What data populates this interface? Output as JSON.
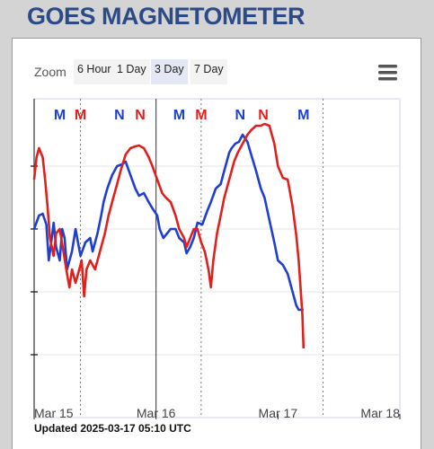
{
  "header": {
    "title": "GOES MAGNETOMETER"
  },
  "toolbar": {
    "label": "Zoom",
    "buttons": [
      "6 Hour",
      "1 Day",
      "3 Day",
      "7 Day"
    ],
    "selected": 2
  },
  "footer": {
    "updated": "Updated 2025-03-17 05:10 UTC"
  },
  "chart_data": {
    "type": "line",
    "xlim": [
      0,
      3
    ],
    "xticks": [
      {
        "value": 0,
        "label": "Mar 15"
      },
      {
        "value": 1,
        "label": "Mar 16"
      },
      {
        "value": 2,
        "label": "Mar 17"
      },
      {
        "value": 3,
        "label": "Mar 18"
      }
    ],
    "ylim": [
      0,
      355
    ],
    "yticks": [
      70,
      140,
      210,
      280
    ],
    "grid": true,
    "dashed_lines": [
      0.38,
      1.37,
      2.37
    ],
    "solid_lines": [
      1
    ],
    "annotations": [
      {
        "text": "M",
        "color": "#1f3fd0",
        "x": 0.21
      },
      {
        "text": "M",
        "color": "#e0201c",
        "x": 0.38
      },
      {
        "text": "N",
        "color": "#1f3fd0",
        "x": 0.7
      },
      {
        "text": "N",
        "color": "#e0201c",
        "x": 0.87
      },
      {
        "text": "M",
        "color": "#1f3fd0",
        "x": 1.19
      },
      {
        "text": "M",
        "color": "#e0201c",
        "x": 1.37
      },
      {
        "text": "N",
        "color": "#1f3fd0",
        "x": 1.69
      },
      {
        "text": "N",
        "color": "#e0201c",
        "x": 1.88
      },
      {
        "text": "M",
        "color": "#1f3fd0",
        "x": 2.21
      }
    ],
    "series": [
      {
        "color": "#1f3fd0",
        "x": [
          0,
          0.04,
          0.07,
          0.1,
          0.12,
          0.14,
          0.16,
          0.18,
          0.21,
          0.23,
          0.25,
          0.27,
          0.31,
          0.34,
          0.36,
          0.38,
          0.42,
          0.46,
          0.48,
          0.52,
          0.55,
          0.57,
          0.6,
          0.64,
          0.68,
          0.72,
          0.75,
          0.79,
          0.83,
          0.86,
          0.9,
          0.94,
          0.97,
          1.01,
          1.03,
          1.06,
          1.09,
          1.12,
          1.16,
          1.19,
          1.23,
          1.25,
          1.28,
          1.31,
          1.34,
          1.38,
          1.42,
          1.45,
          1.49,
          1.53,
          1.56,
          1.6,
          1.62,
          1.65,
          1.68,
          1.71,
          1.75,
          1.78,
          1.82,
          1.86,
          1.89,
          1.93,
          1.97,
          2.0,
          2.04,
          2.08,
          2.12,
          2.15,
          2.17,
          2.21
        ],
        "values": [
          210,
          225,
          227,
          215,
          175,
          195,
          217,
          190,
          175,
          210,
          200,
          165,
          185,
          210,
          195,
          180,
          195,
          200,
          185,
          205,
          225,
          240,
          255,
          270,
          280,
          282,
          285,
          270,
          255,
          247,
          250,
          240,
          233,
          225,
          210,
          200,
          205,
          210,
          210,
          200,
          195,
          183,
          190,
          200,
          217,
          215,
          230,
          240,
          255,
          260,
          275,
          295,
          300,
          305,
          307,
          315,
          307,
          293,
          275,
          255,
          245,
          220,
          195,
          175,
          170,
          160,
          140,
          125,
          120,
          120
        ]
      },
      {
        "color": "#e0201c",
        "x": [
          0,
          0.02,
          0.04,
          0.07,
          0.09,
          0.11,
          0.13,
          0.16,
          0.18,
          0.21,
          0.24,
          0.27,
          0.29,
          0.31,
          0.34,
          0.37,
          0.39,
          0.41,
          0.43,
          0.46,
          0.48,
          0.5,
          0.53,
          0.55,
          0.58,
          0.61,
          0.64,
          0.68,
          0.71,
          0.75,
          0.79,
          0.83,
          0.86,
          0.9,
          0.94,
          0.97,
          1.01,
          1.05,
          1.08,
          1.12,
          1.16,
          1.19,
          1.23,
          1.25,
          1.28,
          1.31,
          1.34,
          1.37,
          1.4,
          1.43,
          1.45,
          1.47,
          1.5,
          1.53,
          1.56,
          1.6,
          1.64,
          1.67,
          1.71,
          1.75,
          1.78,
          1.82,
          1.86,
          1.89,
          1.93,
          1.97,
          2.0,
          2.04,
          2.08,
          2.12,
          2.15,
          2.17,
          2.2,
          2.21
        ],
        "values": [
          265,
          290,
          300,
          290,
          265,
          235,
          200,
          180,
          205,
          210,
          185,
          160,
          145,
          165,
          150,
          165,
          175,
          135,
          165,
          175,
          170,
          165,
          180,
          190,
          205,
          225,
          240,
          260,
          275,
          293,
          300,
          302,
          303,
          300,
          290,
          280,
          265,
          250,
          245,
          240,
          225,
          210,
          200,
          190,
          200,
          210,
          210,
          195,
          185,
          165,
          145,
          175,
          205,
          225,
          245,
          265,
          285,
          295,
          305,
          315,
          320,
          325,
          325,
          327,
          325,
          305,
          280,
          267,
          265,
          235,
          203,
          175,
          115,
          77
        ]
      }
    ]
  }
}
